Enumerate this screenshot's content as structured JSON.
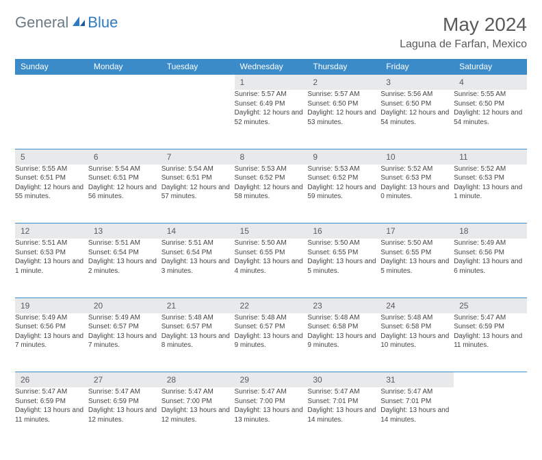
{
  "logo": {
    "general": "General",
    "blue": "Blue"
  },
  "title": "May 2024",
  "location": "Laguna de Farfan, Mexico",
  "colors": {
    "header_bg": "#3b8bc9",
    "header_fg": "#ffffff",
    "daynum_bg": "#e8e9eb",
    "text": "#5a5a5a",
    "border": "#3b8bc9"
  },
  "weekdays": [
    "Sunday",
    "Monday",
    "Tuesday",
    "Wednesday",
    "Thursday",
    "Friday",
    "Saturday"
  ],
  "weeks": [
    [
      {
        "n": "",
        "sr": "",
        "ss": "",
        "dl": ""
      },
      {
        "n": "",
        "sr": "",
        "ss": "",
        "dl": ""
      },
      {
        "n": "",
        "sr": "",
        "ss": "",
        "dl": ""
      },
      {
        "n": "1",
        "sr": "5:57 AM",
        "ss": "6:49 PM",
        "dl": "12 hours and 52 minutes."
      },
      {
        "n": "2",
        "sr": "5:57 AM",
        "ss": "6:50 PM",
        "dl": "12 hours and 53 minutes."
      },
      {
        "n": "3",
        "sr": "5:56 AM",
        "ss": "6:50 PM",
        "dl": "12 hours and 54 minutes."
      },
      {
        "n": "4",
        "sr": "5:55 AM",
        "ss": "6:50 PM",
        "dl": "12 hours and 54 minutes."
      }
    ],
    [
      {
        "n": "5",
        "sr": "5:55 AM",
        "ss": "6:51 PM",
        "dl": "12 hours and 55 minutes."
      },
      {
        "n": "6",
        "sr": "5:54 AM",
        "ss": "6:51 PM",
        "dl": "12 hours and 56 minutes."
      },
      {
        "n": "7",
        "sr": "5:54 AM",
        "ss": "6:51 PM",
        "dl": "12 hours and 57 minutes."
      },
      {
        "n": "8",
        "sr": "5:53 AM",
        "ss": "6:52 PM",
        "dl": "12 hours and 58 minutes."
      },
      {
        "n": "9",
        "sr": "5:53 AM",
        "ss": "6:52 PM",
        "dl": "12 hours and 59 minutes."
      },
      {
        "n": "10",
        "sr": "5:52 AM",
        "ss": "6:53 PM",
        "dl": "13 hours and 0 minutes."
      },
      {
        "n": "11",
        "sr": "5:52 AM",
        "ss": "6:53 PM",
        "dl": "13 hours and 1 minute."
      }
    ],
    [
      {
        "n": "12",
        "sr": "5:51 AM",
        "ss": "6:53 PM",
        "dl": "13 hours and 1 minute."
      },
      {
        "n": "13",
        "sr": "5:51 AM",
        "ss": "6:54 PM",
        "dl": "13 hours and 2 minutes."
      },
      {
        "n": "14",
        "sr": "5:51 AM",
        "ss": "6:54 PM",
        "dl": "13 hours and 3 minutes."
      },
      {
        "n": "15",
        "sr": "5:50 AM",
        "ss": "6:55 PM",
        "dl": "13 hours and 4 minutes."
      },
      {
        "n": "16",
        "sr": "5:50 AM",
        "ss": "6:55 PM",
        "dl": "13 hours and 5 minutes."
      },
      {
        "n": "17",
        "sr": "5:50 AM",
        "ss": "6:55 PM",
        "dl": "13 hours and 5 minutes."
      },
      {
        "n": "18",
        "sr": "5:49 AM",
        "ss": "6:56 PM",
        "dl": "13 hours and 6 minutes."
      }
    ],
    [
      {
        "n": "19",
        "sr": "5:49 AM",
        "ss": "6:56 PM",
        "dl": "13 hours and 7 minutes."
      },
      {
        "n": "20",
        "sr": "5:49 AM",
        "ss": "6:57 PM",
        "dl": "13 hours and 7 minutes."
      },
      {
        "n": "21",
        "sr": "5:48 AM",
        "ss": "6:57 PM",
        "dl": "13 hours and 8 minutes."
      },
      {
        "n": "22",
        "sr": "5:48 AM",
        "ss": "6:57 PM",
        "dl": "13 hours and 9 minutes."
      },
      {
        "n": "23",
        "sr": "5:48 AM",
        "ss": "6:58 PM",
        "dl": "13 hours and 9 minutes."
      },
      {
        "n": "24",
        "sr": "5:48 AM",
        "ss": "6:58 PM",
        "dl": "13 hours and 10 minutes."
      },
      {
        "n": "25",
        "sr": "5:47 AM",
        "ss": "6:59 PM",
        "dl": "13 hours and 11 minutes."
      }
    ],
    [
      {
        "n": "26",
        "sr": "5:47 AM",
        "ss": "6:59 PM",
        "dl": "13 hours and 11 minutes."
      },
      {
        "n": "27",
        "sr": "5:47 AM",
        "ss": "6:59 PM",
        "dl": "13 hours and 12 minutes."
      },
      {
        "n": "28",
        "sr": "5:47 AM",
        "ss": "7:00 PM",
        "dl": "13 hours and 12 minutes."
      },
      {
        "n": "29",
        "sr": "5:47 AM",
        "ss": "7:00 PM",
        "dl": "13 hours and 13 minutes."
      },
      {
        "n": "30",
        "sr": "5:47 AM",
        "ss": "7:01 PM",
        "dl": "13 hours and 14 minutes."
      },
      {
        "n": "31",
        "sr": "5:47 AM",
        "ss": "7:01 PM",
        "dl": "13 hours and 14 minutes."
      },
      {
        "n": "",
        "sr": "",
        "ss": "",
        "dl": ""
      }
    ]
  ]
}
